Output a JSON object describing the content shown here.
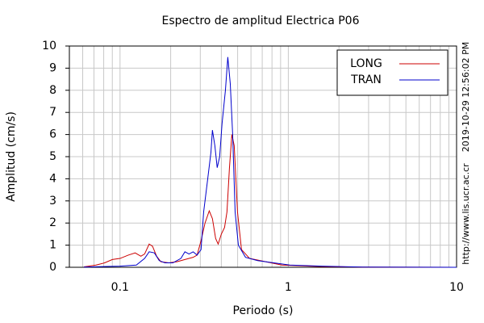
{
  "chart_data": {
    "type": "line",
    "title": "Espectro de amplitud Electrica P06",
    "xlabel": "Periodo (s)",
    "ylabel": "Amplitud (cm/s)",
    "annotations": [
      "2019-10-29 12:56:02 PM",
      "http://www.lis.ucr.ac.cr"
    ],
    "xscale": "log",
    "xlim": [
      0.05,
      10
    ],
    "ylim": [
      0,
      10
    ],
    "xticks": [
      0.1,
      1,
      10
    ],
    "xminorticks": [
      0.06,
      0.07,
      0.08,
      0.09,
      0.2,
      0.3,
      0.4,
      0.5,
      0.6,
      0.7,
      0.8,
      0.9,
      2,
      3,
      4,
      5,
      6,
      7,
      8,
      9
    ],
    "yticks": [
      0,
      1,
      2,
      3,
      4,
      5,
      6,
      7,
      8,
      9,
      10
    ],
    "grid": true,
    "legend": "upper right",
    "series": [
      {
        "name": "LONG",
        "color": "#cc0000",
        "x": [
          0.061,
          0.072,
          0.081,
          0.09,
          0.1,
          0.112,
          0.123,
          0.133,
          0.14,
          0.149,
          0.156,
          0.165,
          0.175,
          0.195,
          0.218,
          0.243,
          0.272,
          0.287,
          0.303,
          0.32,
          0.339,
          0.354,
          0.37,
          0.383,
          0.4,
          0.418,
          0.432,
          0.447,
          0.462,
          0.477,
          0.499,
          0.527,
          0.589,
          0.734,
          0.915,
          1.59,
          2.76,
          10
        ],
        "values": [
          0.02,
          0.1,
          0.2,
          0.35,
          0.4,
          0.55,
          0.65,
          0.5,
          0.6,
          1.05,
          0.95,
          0.5,
          0.25,
          0.2,
          0.25,
          0.35,
          0.45,
          0.55,
          1.2,
          2.0,
          2.55,
          2.2,
          1.3,
          1.05,
          1.5,
          1.8,
          2.5,
          4.5,
          6.0,
          5.5,
          2.5,
          0.8,
          0.4,
          0.25,
          0.1,
          0.03,
          0.01,
          0
        ]
      },
      {
        "name": "TRAN",
        "color": "#0000cc",
        "x": [
          0.061,
          0.1,
          0.125,
          0.14,
          0.149,
          0.16,
          0.171,
          0.185,
          0.206,
          0.23,
          0.243,
          0.257,
          0.272,
          0.287,
          0.303,
          0.314,
          0.332,
          0.347,
          0.354,
          0.366,
          0.378,
          0.391,
          0.404,
          0.423,
          0.437,
          0.452,
          0.467,
          0.483,
          0.505,
          0.557,
          0.657,
          0.82,
          1.02,
          1.59,
          2.76,
          10
        ],
        "values": [
          0.01,
          0.05,
          0.1,
          0.4,
          0.7,
          0.65,
          0.3,
          0.2,
          0.2,
          0.4,
          0.7,
          0.6,
          0.7,
          0.55,
          0.8,
          2.5,
          4.0,
          5.2,
          6.2,
          5.5,
          4.5,
          5.0,
          6.5,
          8.0,
          9.5,
          8.3,
          6.0,
          2.5,
          1.0,
          0.45,
          0.3,
          0.2,
          0.1,
          0.05,
          0.01,
          0
        ]
      }
    ]
  }
}
